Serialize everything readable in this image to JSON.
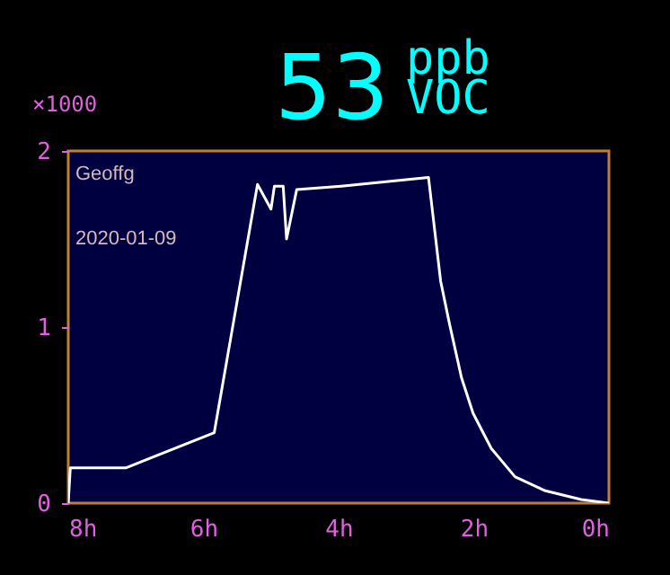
{
  "chart_data": {
    "type": "line",
    "title": "53",
    "subtitle": "ppb VOC",
    "ylabel": "×1000",
    "annotations": [
      "Geoffg",
      "2020-01-09"
    ],
    "x": [
      8,
      7.97,
      7.15,
      5.84,
      5.2,
      5.0,
      4.95,
      4.82,
      4.77,
      4.62,
      3.96,
      2.67,
      2.63,
      2.49,
      2.36,
      2.18,
      2.01,
      1.74,
      1.39,
      0.94,
      0.41,
      0
    ],
    "series": [
      {
        "color": "#ffffff",
        "values": [
          0,
          0.2,
          0.2,
          0.4,
          1.81,
          1.67,
          1.8,
          1.8,
          1.5,
          1.78,
          1.8,
          1.85,
          1.72,
          1.26,
          1.02,
          0.71,
          0.51,
          0.31,
          0.15,
          0.07,
          0.02,
          0
        ]
      }
    ],
    "xlim": [
      8,
      0
    ],
    "xticks": [
      {
        "value": 8,
        "label": "8h"
      },
      {
        "value": 6,
        "label": "6h"
      },
      {
        "value": 4,
        "label": "4h"
      },
      {
        "value": 2,
        "label": "2h"
      },
      {
        "value": 0,
        "label": "0h"
      }
    ],
    "ylim": [
      0,
      2
    ],
    "yticks": [
      0,
      1,
      2
    ],
    "grid": false
  }
}
